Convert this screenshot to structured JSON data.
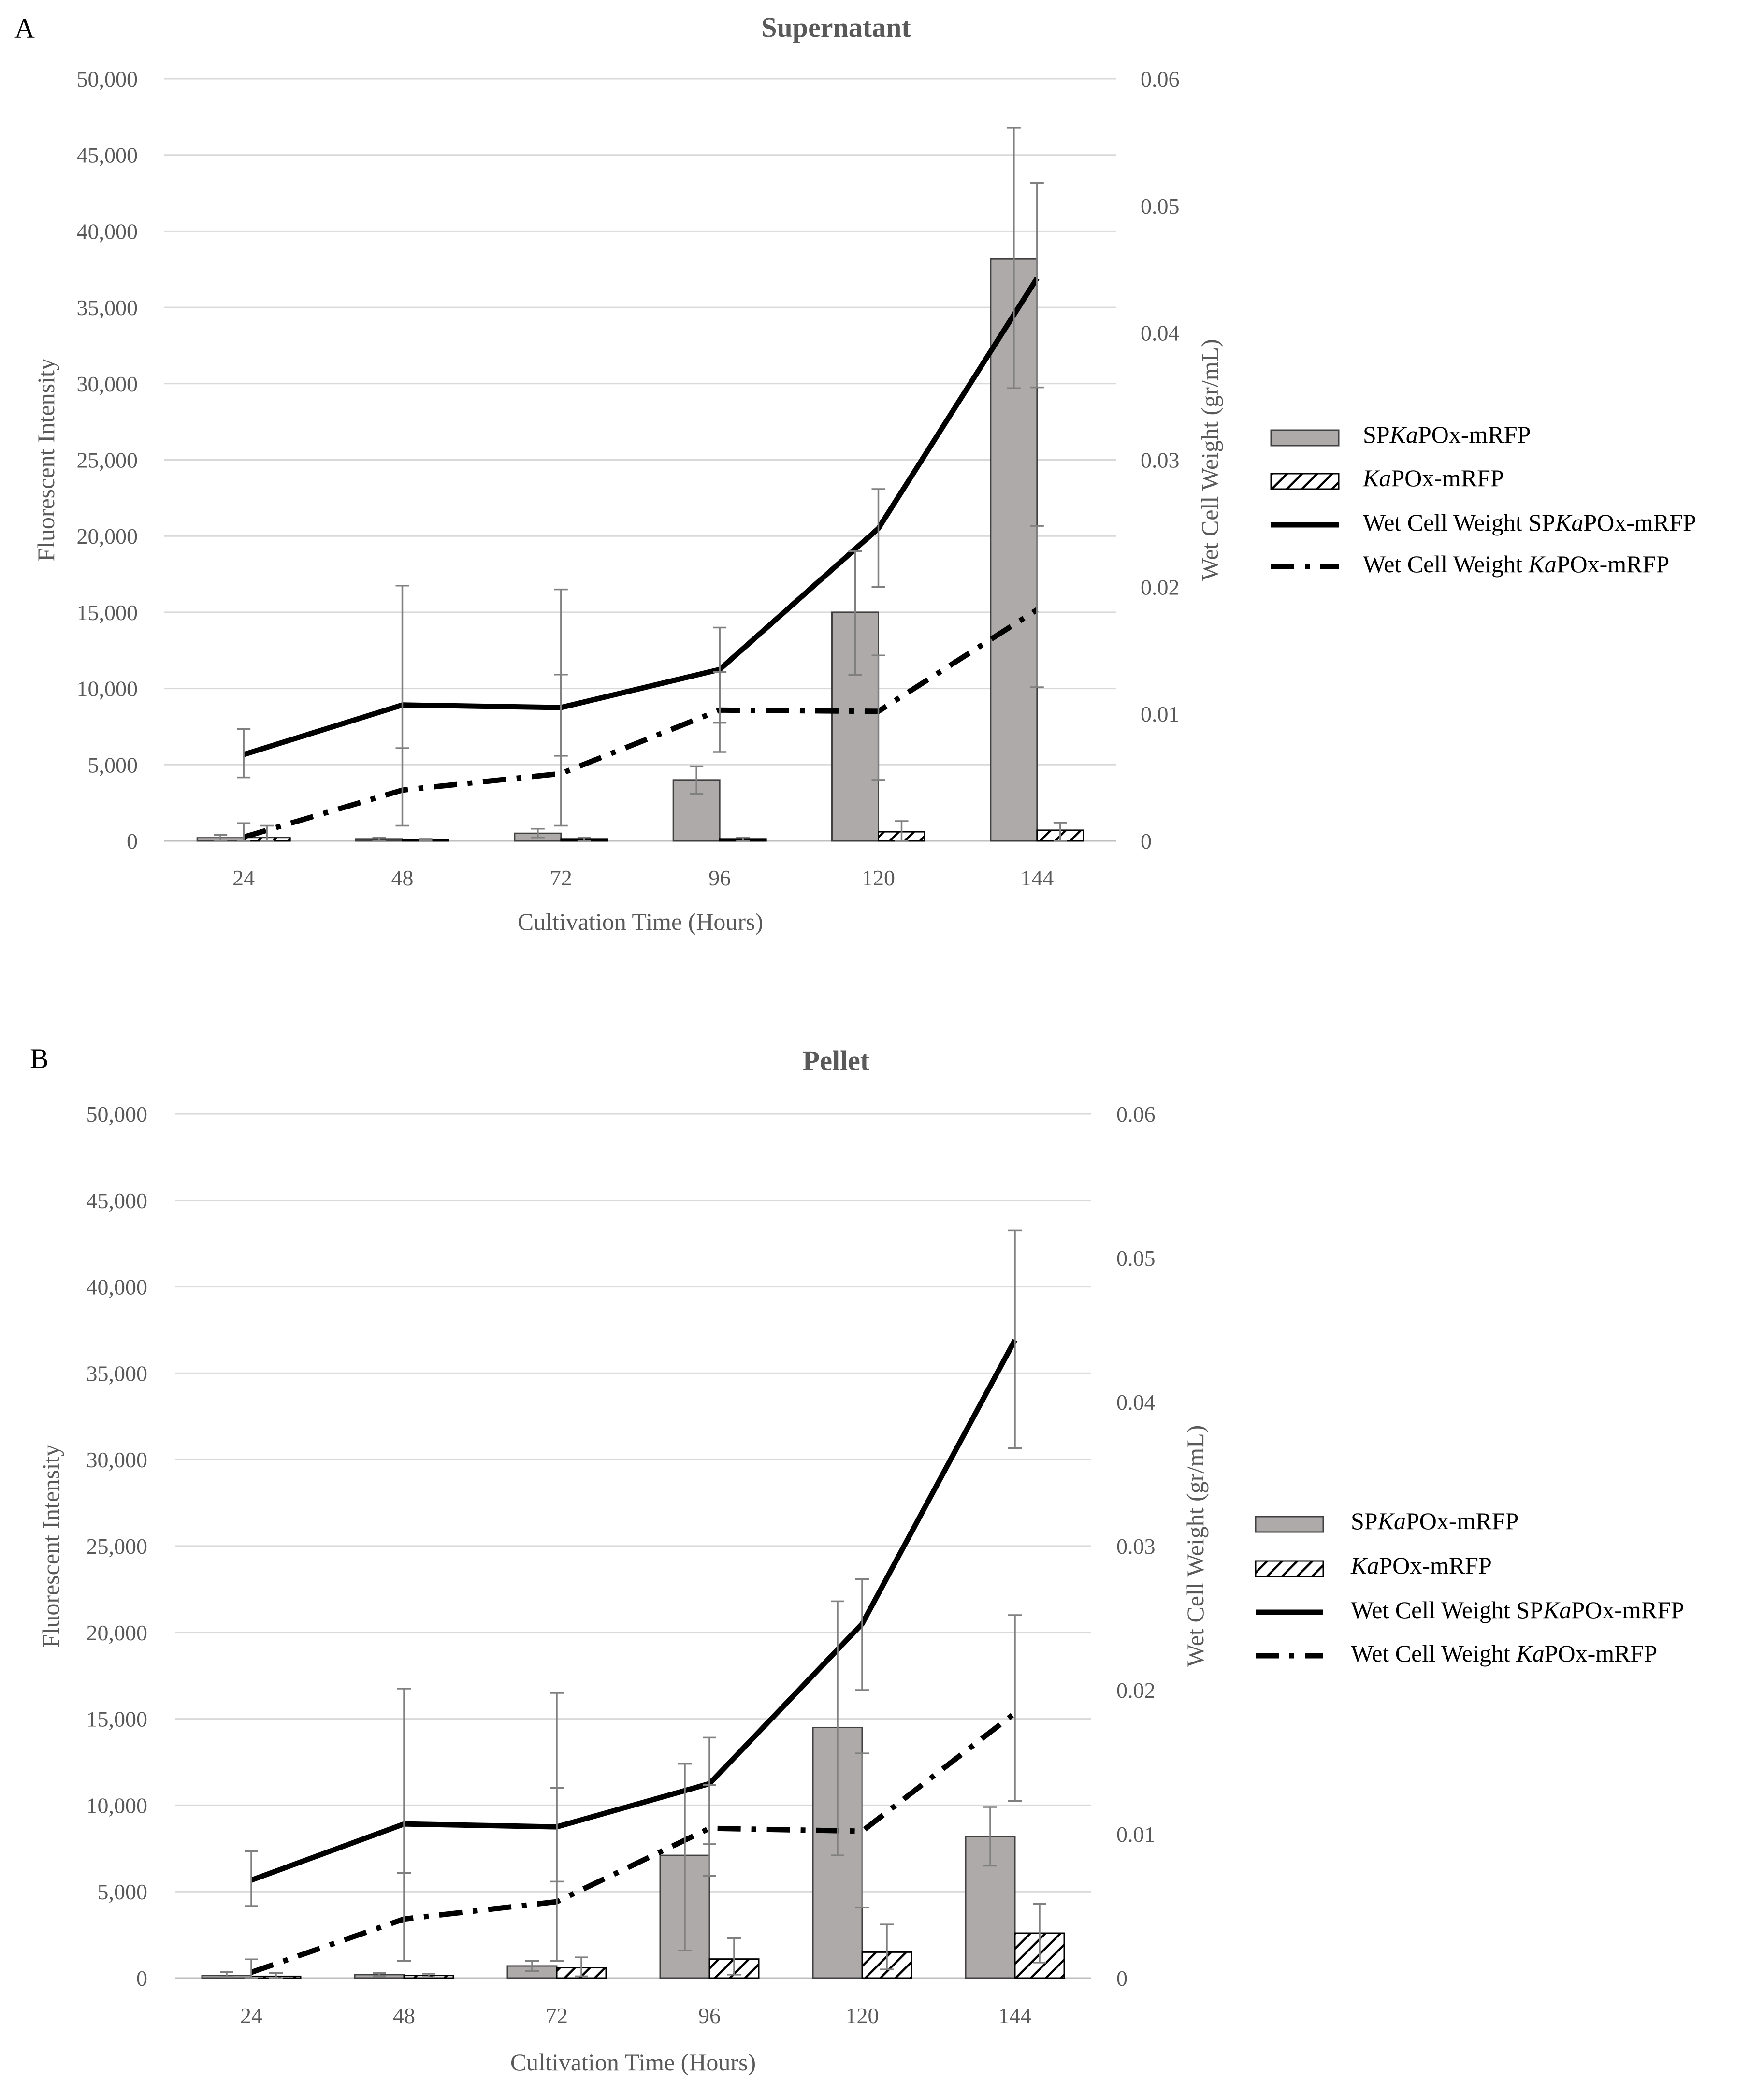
{
  "chart_data": [
    {
      "type": "bar",
      "panel_label": "A",
      "title": "Supernatant",
      "xlabel": "Cultivation Time (Hours)",
      "ylabel": "Fluorescent Intensity",
      "y2label": "Wet Cell Weight (gr/mL)",
      "categories": [
        "24",
        "48",
        "72",
        "96",
        "120",
        "144"
      ],
      "ylim": [
        0,
        50000
      ],
      "y2lim": [
        0,
        0.06
      ],
      "y_ticks": [
        0,
        5000,
        10000,
        15000,
        20000,
        25000,
        30000,
        35000,
        40000,
        45000,
        50000
      ],
      "y_tick_labels": [
        "0",
        "5,000",
        "10,000",
        "15,000",
        "20,000",
        "25,000",
        "30,000",
        "35,000",
        "40,000",
        "45,000",
        "50,000"
      ],
      "y2_ticks": [
        0,
        0.01,
        0.02,
        0.03,
        0.04,
        0.05,
        0.06
      ],
      "y2_tick_labels": [
        "0",
        "0.01",
        "0.02",
        "0.03",
        "0.04",
        "0.05",
        "0.06"
      ],
      "grid": true,
      "legend_position": "right",
      "bar_series": [
        {
          "name_plain": "SP",
          "name_italic": "Ka",
          "name_rest": "POx-mRFP",
          "values": [
            200,
            100,
            500,
            4000,
            15000,
            38200
          ],
          "err_lo": [
            200,
            100,
            300,
            900,
            4100,
            8500
          ],
          "err_hi": [
            200,
            100,
            300,
            900,
            4000,
            8600
          ]
        },
        {
          "name_plain": "",
          "name_italic": "Ka",
          "name_rest": "POx-mRFP",
          "values": [
            200,
            50,
            100,
            100,
            600,
            700
          ],
          "err_lo": [
            200,
            50,
            100,
            100,
            600,
            700
          ],
          "err_hi": [
            800,
            50,
            100,
            100,
            700,
            500
          ]
        }
      ],
      "line_series": [
        {
          "name_plain": "Wet Cell Weight SP",
          "name_italic": "Ka",
          "name_rest": "POx-mRFP",
          "style": "solid",
          "values": [
            0.0068,
            0.0107,
            0.0105,
            0.0135,
            0.0246,
            0.0443
          ],
          "err_lo": [
            0.0018,
            0.0034,
            0.0038,
            0.0042,
            0.0046,
            0.0086
          ],
          "err_hi": [
            0.002,
            0.0094,
            0.0093,
            0.0033,
            0.0031,
            0.0075
          ]
        },
        {
          "name_plain": "Wet Cell Weight ",
          "name_italic": "Ka",
          "name_rest": "POx-mRFP",
          "style": "dashdot",
          "values": [
            0.0003,
            0.004,
            0.0053,
            0.0103,
            0.0102,
            0.0182
          ],
          "err_lo": [
            0.0003,
            0.0028,
            0.0041,
            0.0033,
            0.0054,
            0.0061
          ],
          "err_hi": [
            0.0011,
            0.0033,
            0.0078,
            0.003,
            0.0044,
            0.0066
          ]
        }
      ]
    },
    {
      "type": "bar",
      "panel_label": "B",
      "title": "Pellet",
      "xlabel": "Cultivation Time (Hours)",
      "ylabel": "Fluorescent Intensity",
      "y2label": "Wet Cell Weight (gr/mL)",
      "categories": [
        "24",
        "48",
        "72",
        "96",
        "120",
        "144"
      ],
      "ylim": [
        0,
        50000
      ],
      "y2lim": [
        0,
        0.06
      ],
      "y_ticks": [
        0,
        5000,
        10000,
        15000,
        20000,
        25000,
        30000,
        35000,
        40000,
        45000,
        50000
      ],
      "y_tick_labels": [
        "0",
        "5,000",
        "10,000",
        "15,000",
        "20,000",
        "25,000",
        "30,000",
        "35,000",
        "40,000",
        "45,000",
        "50,000"
      ],
      "y2_ticks": [
        0,
        0.01,
        0.02,
        0.03,
        0.04,
        0.05,
        0.06
      ],
      "y2_tick_labels": [
        "0",
        "0.01",
        "0.02",
        "0.03",
        "0.04",
        "0.05",
        "0.06"
      ],
      "grid": true,
      "legend_position": "right",
      "bar_series": [
        {
          "name_plain": "SP",
          "name_italic": "Ka",
          "name_rest": "POx-mRFP",
          "values": [
            150,
            200,
            700,
            7100,
            14500,
            8200
          ],
          "err_lo": [
            100,
            100,
            300,
            5500,
            7400,
            1700
          ],
          "err_hi": [
            200,
            100,
            300,
            5300,
            7300,
            1700
          ]
        },
        {
          "name_plain": "",
          "name_italic": "Ka",
          "name_rest": "POx-mRFP",
          "values": [
            100,
            150,
            600,
            1100,
            1500,
            2600
          ],
          "err_lo": [
            100,
            100,
            500,
            900,
            1000,
            1700
          ],
          "err_hi": [
            200,
            100,
            600,
            1200,
            1600,
            1700
          ]
        }
      ],
      "line_series": [
        {
          "name_plain": "Wet Cell Weight SP",
          "name_italic": "Ka",
          "name_rest": "POx-mRFP",
          "style": "solid",
          "values": [
            0.0068,
            0.0107,
            0.0105,
            0.0135,
            0.0246,
            0.0443
          ],
          "err_lo": [
            0.0018,
            0.0034,
            0.0038,
            0.0042,
            0.0046,
            0.0075
          ],
          "err_hi": [
            0.002,
            0.0094,
            0.0093,
            0.0032,
            0.0031,
            0.0076
          ]
        },
        {
          "name_plain": "Wet Cell Weight ",
          "name_italic": "Ka",
          "name_rest": "POx-mRFP",
          "style": "dashdot",
          "values": [
            0.0004,
            0.0041,
            0.0053,
            0.0104,
            0.0102,
            0.0184
          ],
          "err_lo": [
            0.0004,
            0.0029,
            0.0041,
            0.0033,
            0.0053,
            0.0061
          ],
          "err_hi": [
            0.0009,
            0.0032,
            0.0079,
            0.003,
            0.0054,
            0.0068
          ]
        }
      ]
    }
  ]
}
